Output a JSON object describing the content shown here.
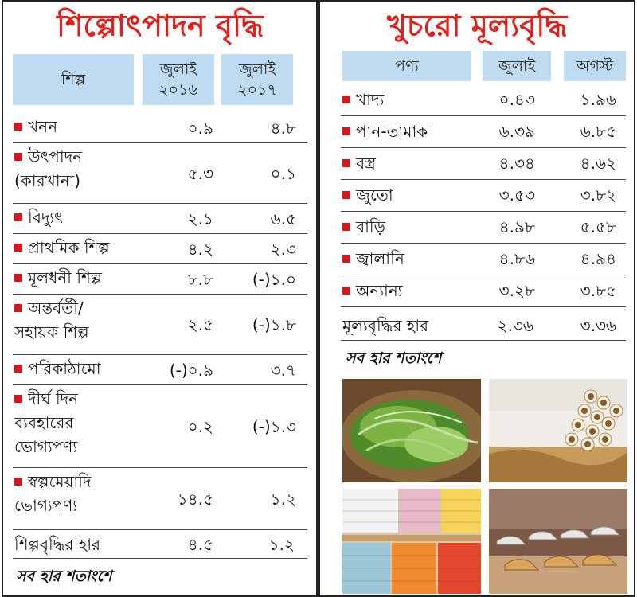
{
  "industrial": {
    "title": "শিল্পোৎপাদন বৃদ্ধি",
    "headers": {
      "sector": "শিল্প",
      "col1": [
        "জুলাই",
        "২০১৬"
      ],
      "col2": [
        "জুলাই",
        "২০১৭"
      ]
    },
    "rows": [
      {
        "lines": [
          "খনন"
        ],
        "v1": "০.৯",
        "v2": "৪.৮"
      },
      {
        "lines": [
          "উৎপাদন",
          "(কারখানা)"
        ],
        "v1": "৫.৩",
        "v2": "০.১"
      },
      {
        "lines": [
          "বিদ্যুৎ"
        ],
        "v1": "২.১",
        "v2": "৬.৫"
      },
      {
        "lines": [
          "প্রাথমিক শিল্প"
        ],
        "v1": "৪.২",
        "v2": "২.৩"
      },
      {
        "lines": [
          "মূলধনী শিল্প"
        ],
        "v1": "৮.৮",
        "v2": "(-)১.০"
      },
      {
        "lines": [
          "অন্তর্বর্তী/",
          "সহায়ক শিল্প"
        ],
        "v1": "২.৫",
        "v2": "(-)১.৮"
      },
      {
        "lines": [
          "পরিকাঠামো"
        ],
        "v1": "(-)০.৯",
        "v2": "৩.৭"
      },
      {
        "lines": [
          "দীর্ঘ দিন",
          "ব্যবহারের",
          "ভোগ্যপণ্য"
        ],
        "v1": "০.২",
        "v2": "(-)১.৩"
      },
      {
        "lines": [
          "স্বল্পমেয়াদি",
          "ভোগ্যপণ্য"
        ],
        "v1": "১৪.৫",
        "v2": "১.২"
      }
    ],
    "summary": {
      "label": "শিল্পবৃদ্ধির হার",
      "v1": "৪.৫",
      "v2": "১.২"
    },
    "note": "সব হার শতাংশে"
  },
  "retail": {
    "title": "খুচরো মূল্যবৃদ্ধি",
    "headers": {
      "product": "পণ্য",
      "col1": "জুলাই",
      "col2": "অগস্ট"
    },
    "rows": [
      {
        "name": "খাদ্য",
        "v1": "০.৪৩",
        "v2": "১.৯৬"
      },
      {
        "name": "পান-তামাক",
        "v1": "৬.৩৯",
        "v2": "৬.৮৫"
      },
      {
        "name": "বস্ত্র",
        "v1": "৪.৩৪",
        "v2": "৪.৬২"
      },
      {
        "name": "জুতো",
        "v1": "৩.৫৩",
        "v2": "৩.৮২"
      },
      {
        "name": "বাড়ি",
        "v1": "৪.৯৮",
        "v2": "৫.৫৮"
      },
      {
        "name": "জ্বালানি",
        "v1": "৪.৮৬",
        "v2": "৪.৯৪"
      },
      {
        "name": "অন্যান্য",
        "v1": "৩.২৮",
        "v2": "৩.৮৫"
      }
    ],
    "summary": {
      "label": "মূল্যবৃদ্ধির হার",
      "v1": "২.৩৬",
      "v2": "৩.৩৬"
    },
    "note": "সব হার শতাংশে"
  },
  "colors": {
    "title": "#e0201b",
    "header_bg": "#bedbf1",
    "bullet": "#d8151b"
  },
  "photos": [
    "betel-leaves-photo",
    "tobacco-photo",
    "clothing-shelves-photo",
    "shoes-display-photo"
  ]
}
